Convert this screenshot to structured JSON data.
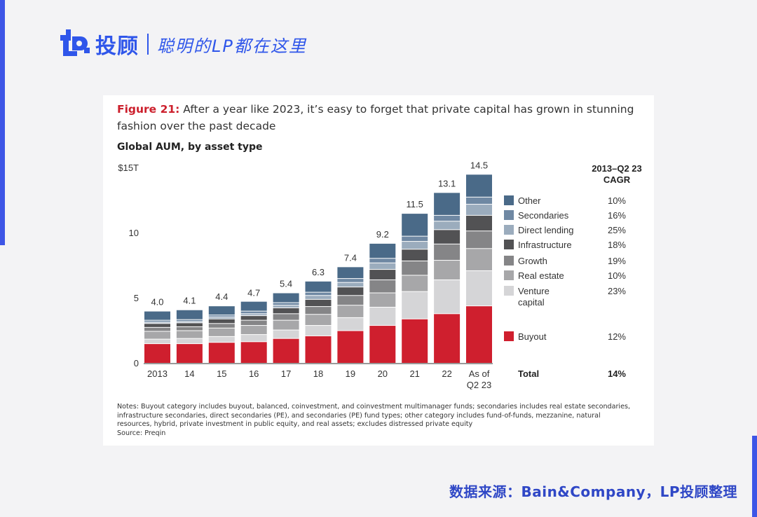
{
  "brand": {
    "name": "投顾",
    "tagline": "聪明的LP都在这里",
    "logo_icon": "lp-logo-icon",
    "color": "#2f56ea"
  },
  "figure": {
    "label": "Figure 21:",
    "title": "After a year like 2023, it’s easy to forget that private capital has grown in stunning fashion over the past decade",
    "subtitle": "Global AUM, by asset type"
  },
  "chart_data": {
    "type": "bar",
    "stacked": true,
    "title": "Global AUM, by asset type",
    "ylabel": "$15T",
    "xlabel": "",
    "ylim": [
      0,
      15
    ],
    "yticks": [
      {
        "value": 0,
        "label": "0"
      },
      {
        "value": 5,
        "label": "5"
      },
      {
        "value": 10,
        "label": "10"
      },
      {
        "value": 15,
        "label": "$15T"
      }
    ],
    "categories": [
      "2013",
      "14",
      "15",
      "16",
      "17",
      "18",
      "19",
      "20",
      "21",
      "22",
      "As of Q2 23"
    ],
    "category_lines": [
      [
        "2013"
      ],
      [
        "14"
      ],
      [
        "15"
      ],
      [
        "16"
      ],
      [
        "17"
      ],
      [
        "18"
      ],
      [
        "19"
      ],
      [
        "20"
      ],
      [
        "21"
      ],
      [
        "22"
      ],
      [
        "As of",
        "Q2 23"
      ]
    ],
    "totals": [
      4.0,
      4.1,
      4.4,
      4.7,
      5.4,
      6.3,
      7.4,
      9.2,
      11.5,
      13.1,
      14.5
    ],
    "total_labels": [
      "4.0",
      "4.1",
      "4.4",
      "4.7",
      "5.4",
      "6.3",
      "7.4",
      "9.2",
      "11.5",
      "13.1",
      "14.5"
    ],
    "series": [
      {
        "name": "Buyout",
        "color": "#cf1f2e",
        "cagr": "12%",
        "values": [
          1.5,
          1.5,
          1.6,
          1.65,
          1.9,
          2.1,
          2.5,
          2.9,
          3.4,
          3.8,
          4.4
        ]
      },
      {
        "name": "Venture capital",
        "color": "#d5d5d7",
        "cagr": "23%",
        "values": [
          0.35,
          0.4,
          0.45,
          0.55,
          0.65,
          0.8,
          1.0,
          1.4,
          2.1,
          2.6,
          2.7
        ]
      },
      {
        "name": "Real estate",
        "color": "#a7a7a9",
        "cagr": "10%",
        "values": [
          0.6,
          0.6,
          0.65,
          0.7,
          0.75,
          0.85,
          0.95,
          1.1,
          1.25,
          1.5,
          1.7
        ]
      },
      {
        "name": "Growth",
        "color": "#858587",
        "cagr": "19%",
        "values": [
          0.3,
          0.3,
          0.35,
          0.4,
          0.5,
          0.6,
          0.75,
          1.0,
          1.1,
          1.25,
          1.35
        ]
      },
      {
        "name": "Infrastructure",
        "color": "#525254",
        "cagr": "18%",
        "values": [
          0.3,
          0.3,
          0.35,
          0.35,
          0.45,
          0.55,
          0.65,
          0.8,
          0.9,
          1.1,
          1.2
        ]
      },
      {
        "name": "Direct lending",
        "color": "#9bacbd",
        "cagr": "25%",
        "values": [
          0.1,
          0.1,
          0.15,
          0.15,
          0.2,
          0.3,
          0.35,
          0.5,
          0.6,
          0.65,
          0.85
        ]
      },
      {
        "name": "Secondaries",
        "color": "#6f88a3",
        "cagr": "16%",
        "values": [
          0.15,
          0.15,
          0.15,
          0.2,
          0.2,
          0.25,
          0.3,
          0.35,
          0.4,
          0.45,
          0.55
        ]
      },
      {
        "name": "Other",
        "color": "#4a6a88",
        "cagr": "10%",
        "values": [
          0.7,
          0.75,
          0.7,
          0.75,
          0.75,
          0.85,
          0.9,
          1.15,
          1.75,
          1.75,
          1.75
        ]
      }
    ],
    "legend_order": [
      "Other",
      "Secondaries",
      "Direct lending",
      "Infrastructure",
      "Growth",
      "Real estate",
      "Venture capital",
      "Buyout"
    ],
    "cagr_header": [
      "2013–Q2 23",
      "CAGR"
    ],
    "total_row": {
      "label": "Total",
      "cagr": "14%"
    }
  },
  "notes": {
    "lines": [
      "Notes: Buyout category includes buyout, balanced, coinvestment, and coinvestment multimanager funds; secondaries includes real estate secondaries,",
      "infrastructure secondaries, direct secondaries (PE), and secondaries (PE) fund types; other category includes fund-of-funds, mezzanine, natural",
      "resources, hybrid, private investment in public equity, and real assets; excludes distressed private equity",
      "Source: Preqin"
    ]
  },
  "source_credit": "数据来源：Bain&Company，LP投顾整理"
}
